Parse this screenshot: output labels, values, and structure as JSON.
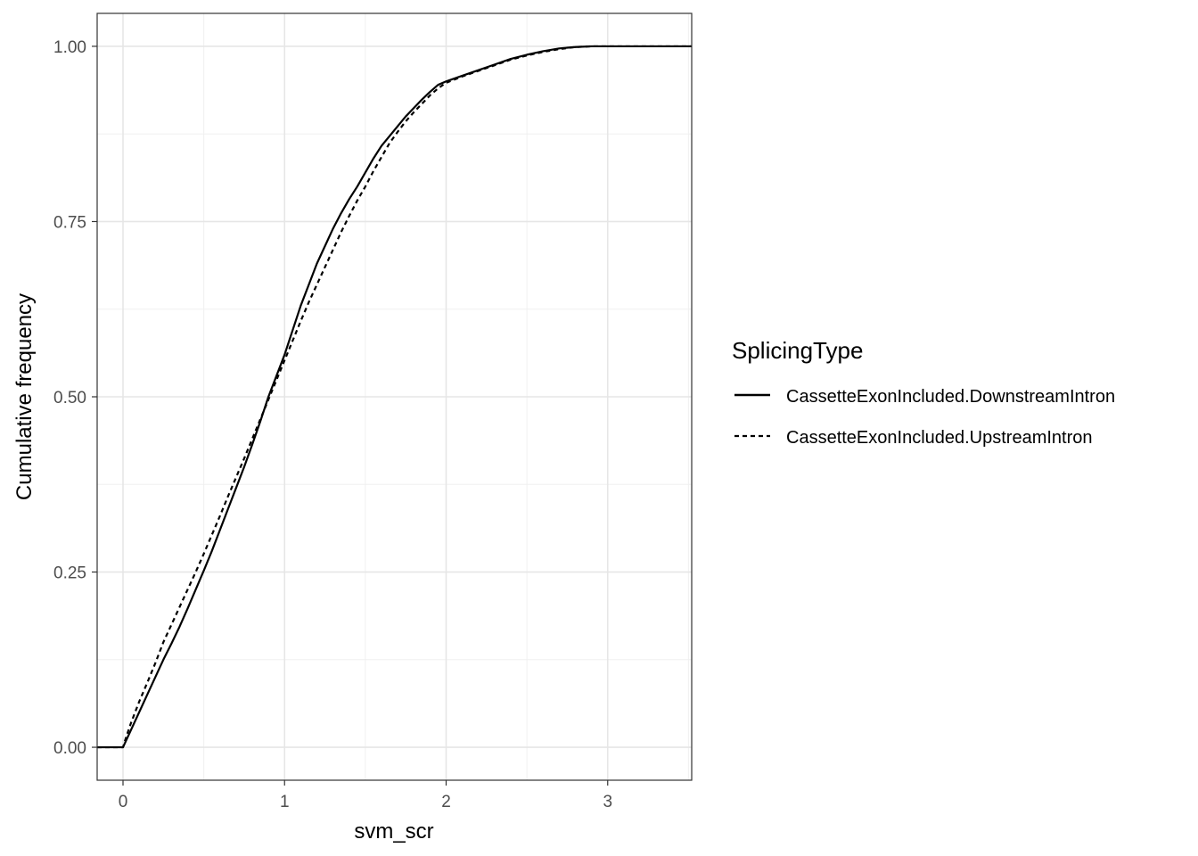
{
  "chart_data": {
    "type": "line",
    "title": "",
    "xlabel": "svm_scr",
    "ylabel": "Cumulative frequency",
    "xlim": [
      -0.16,
      3.52
    ],
    "ylim": [
      -0.047,
      1.047
    ],
    "x_ticks": [
      0,
      1,
      2,
      3
    ],
    "x_tick_labels": [
      "0",
      "1",
      "2",
      "3"
    ],
    "y_ticks": [
      0,
      0.25,
      0.5,
      0.75,
      1
    ],
    "y_tick_labels": [
      "0.00",
      "0.25",
      "0.50",
      "0.75",
      "1.00"
    ],
    "grid": true,
    "legend": {
      "title": "SplicingType",
      "position": "right"
    },
    "series": [
      {
        "name": "CassetteExonIncluded.DownstreamIntron",
        "linestyle": "solid",
        "x": [
          -0.16,
          0.0,
          0.02,
          0.05,
          0.1,
          0.15,
          0.2,
          0.25,
          0.3,
          0.35,
          0.4,
          0.45,
          0.5,
          0.55,
          0.6,
          0.65,
          0.7,
          0.75,
          0.8,
          0.85,
          0.9,
          0.95,
          1.0,
          1.05,
          1.1,
          1.15,
          1.2,
          1.25,
          1.3,
          1.35,
          1.4,
          1.45,
          1.5,
          1.55,
          1.6,
          1.65,
          1.7,
          1.75,
          1.8,
          1.85,
          1.9,
          1.95,
          2.0,
          2.1,
          2.2,
          2.3,
          2.4,
          2.5,
          2.6,
          2.7,
          2.8,
          2.9,
          3.0,
          3.52
        ],
        "y": [
          0.0,
          0.0,
          0.01,
          0.025,
          0.05,
          0.075,
          0.1,
          0.125,
          0.148,
          0.172,
          0.198,
          0.225,
          0.252,
          0.28,
          0.31,
          0.34,
          0.37,
          0.4,
          0.432,
          0.465,
          0.5,
          0.53,
          0.56,
          0.595,
          0.63,
          0.66,
          0.69,
          0.715,
          0.74,
          0.762,
          0.782,
          0.8,
          0.82,
          0.84,
          0.858,
          0.872,
          0.886,
          0.9,
          0.912,
          0.924,
          0.935,
          0.945,
          0.95,
          0.958,
          0.966,
          0.974,
          0.982,
          0.988,
          0.993,
          0.997,
          0.999,
          1.0,
          1.0,
          1.0
        ]
      },
      {
        "name": "CassetteExonIncluded.UpstreamIntron",
        "linestyle": "dashed",
        "x": [
          -0.16,
          0.0,
          0.02,
          0.05,
          0.1,
          0.15,
          0.2,
          0.25,
          0.3,
          0.35,
          0.4,
          0.45,
          0.5,
          0.55,
          0.6,
          0.65,
          0.7,
          0.75,
          0.8,
          0.85,
          0.9,
          0.95,
          1.0,
          1.05,
          1.1,
          1.15,
          1.2,
          1.25,
          1.3,
          1.35,
          1.4,
          1.45,
          1.5,
          1.55,
          1.6,
          1.65,
          1.7,
          1.75,
          1.8,
          1.85,
          1.9,
          1.95,
          2.0,
          2.1,
          2.2,
          2.3,
          2.4,
          2.5,
          2.6,
          2.7,
          2.8,
          2.9,
          3.0,
          3.52
        ],
        "y": [
          0.0,
          0.0,
          0.015,
          0.035,
          0.065,
          0.092,
          0.12,
          0.15,
          0.175,
          0.2,
          0.225,
          0.25,
          0.276,
          0.303,
          0.33,
          0.358,
          0.385,
          0.412,
          0.44,
          0.468,
          0.496,
          0.524,
          0.552,
          0.58,
          0.608,
          0.635,
          0.66,
          0.685,
          0.71,
          0.735,
          0.758,
          0.78,
          0.8,
          0.822,
          0.842,
          0.862,
          0.878,
          0.893,
          0.906,
          0.918,
          0.93,
          0.94,
          0.948,
          0.957,
          0.965,
          0.973,
          0.981,
          0.987,
          0.992,
          0.996,
          0.999,
          1.0,
          1.0,
          1.0
        ]
      }
    ]
  }
}
